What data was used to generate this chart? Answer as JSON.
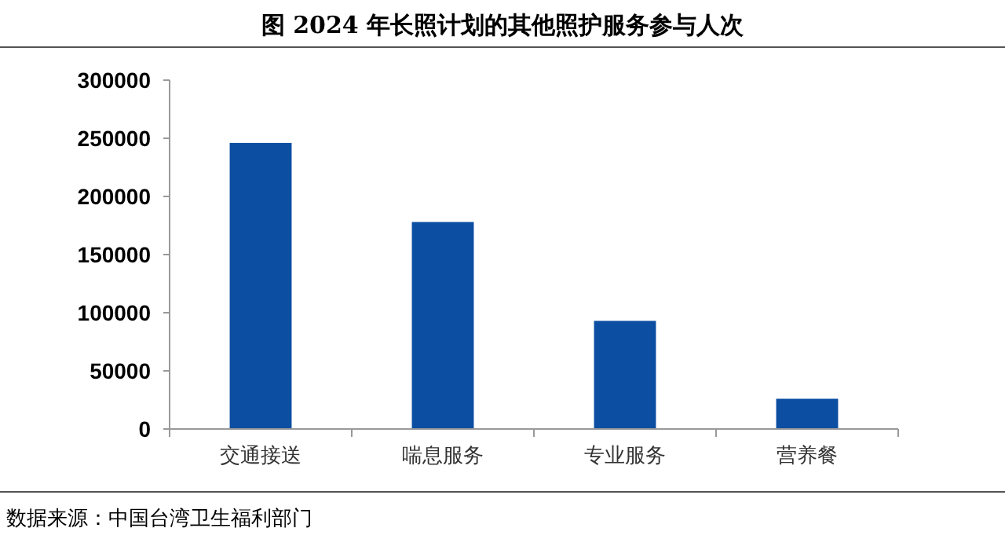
{
  "chart_data": {
    "type": "bar",
    "title": "图  2024 年长照计划的其他照护服务参与人次",
    "categories": [
      "交通接送",
      "喘息服务",
      "专业服务",
      "营养餐"
    ],
    "values": [
      246000,
      178000,
      93000,
      26000
    ],
    "color": "#0b4ea2",
    "ylim": [
      0,
      300000
    ],
    "yticks": [
      0,
      50000,
      100000,
      150000,
      200000,
      250000,
      300000
    ],
    "grid": false,
    "annotations": [
      "数据来源：中国台湾卫生福利部门"
    ]
  }
}
